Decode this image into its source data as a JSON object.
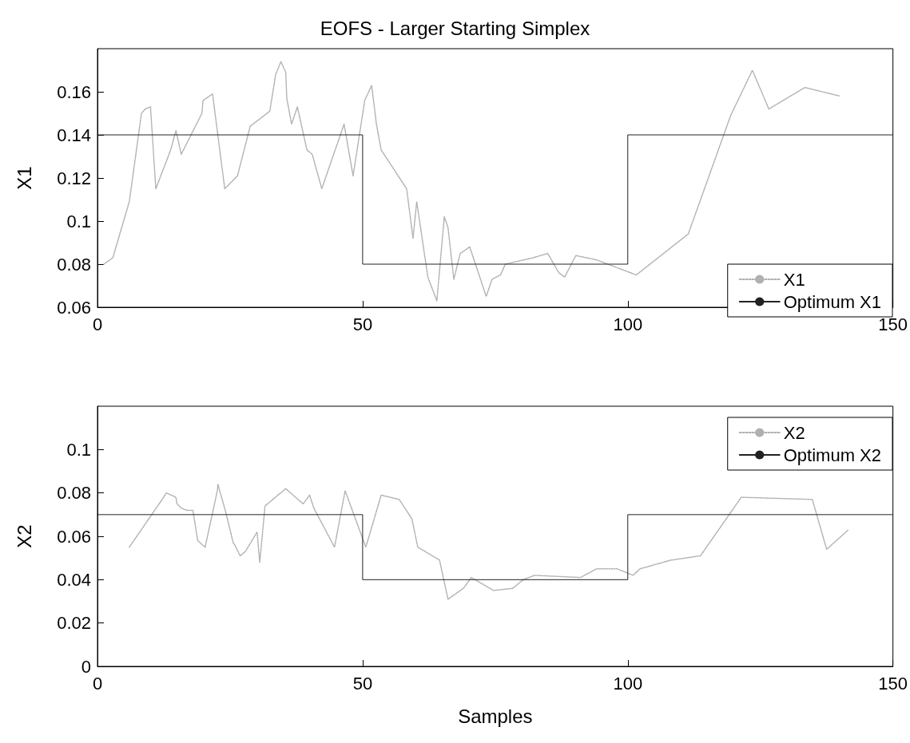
{
  "chart_data": [
    {
      "type": "line",
      "title": "EOFS - Larger Starting Simplex",
      "ylabel": "X1",
      "xlim": [
        0,
        150
      ],
      "xticks": [
        0,
        50,
        100,
        150
      ],
      "ylim": [
        0.06,
        0.18
      ],
      "yticks": [
        0.06,
        0.08,
        0.1,
        0.12,
        0.14,
        0.16
      ],
      "grid": false,
      "legend": "bottom right",
      "marker": "none",
      "series": [
        {
          "name": "X1",
          "color": "#b0b0b0",
          "line_style": "dotted",
          "x": [
            1.2,
            2.9,
            6,
            8.3,
            9,
            10,
            11,
            13.8,
            14.8,
            15.8,
            19.7,
            19.9,
            21.7,
            24,
            26.4,
            28.8,
            32.5,
            33.6,
            34.6,
            35.5,
            35.7,
            36.6,
            37.7,
            39.5,
            40.5,
            42.3,
            46.5,
            48.2,
            50.4,
            51.7,
            52.6,
            53.5,
            58.3,
            59.5,
            60.2,
            62.3,
            64,
            65.4,
            66.1,
            67.2,
            68.4,
            70.2,
            72.9,
            73.3,
            74.4,
            76,
            76.9,
            82.2,
            84.9,
            87,
            88.1,
            90.2,
            94.1,
            101.6,
            111.4,
            119.4,
            123.5,
            126.6,
            133.4,
            140
          ],
          "values": [
            0.08,
            0.083,
            0.109,
            0.15,
            0.152,
            0.153,
            0.115,
            0.133,
            0.142,
            0.131,
            0.15,
            0.156,
            0.159,
            0.115,
            0.121,
            0.144,
            0.151,
            0.168,
            0.174,
            0.169,
            0.157,
            0.145,
            0.153,
            0.133,
            0.131,
            0.115,
            0.145,
            0.121,
            0.156,
            0.163,
            0.145,
            0.133,
            0.115,
            0.092,
            0.109,
            0.074,
            0.063,
            0.102,
            0.097,
            0.073,
            0.085,
            0.088,
            0.068,
            0.065,
            0.073,
            0.075,
            0.08,
            0.083,
            0.085,
            0.076,
            0.074,
            0.084,
            0.082,
            0.075,
            0.094,
            0.149,
            0.17,
            0.152,
            0.162,
            0.158
          ]
        },
        {
          "name": "Optimum X1",
          "color": "#222222",
          "line_style": "solid",
          "x": [
            0,
            50,
            50,
            100,
            100,
            150
          ],
          "values": [
            0.14,
            0.14,
            0.08,
            0.08,
            0.14,
            0.14
          ]
        }
      ]
    },
    {
      "type": "line",
      "xlabel": "Samples",
      "ylabel": "X2",
      "xlim": [
        0,
        150
      ],
      "xticks": [
        0,
        50,
        100,
        150
      ],
      "ylim": [
        0,
        0.12
      ],
      "yticks": [
        0,
        0.02,
        0.04,
        0.06,
        0.08,
        0.1
      ],
      "grid": false,
      "legend": "top right",
      "marker": "none",
      "series": [
        {
          "name": "X2",
          "color": "#b0b0b0",
          "line_style": "dotted",
          "x": [
            6,
            12.2,
            13,
            14.8,
            15,
            15.8,
            16.9,
            18,
            18.9,
            20.3,
            22.6,
            22.7,
            24.1,
            25.6,
            25.9,
            26.9,
            27.9,
            30.1,
            30.6,
            31.6,
            35.5,
            37.8,
            38.8,
            40,
            40.8,
            44.7,
            46.7,
            50.6,
            53.5,
            56.9,
            59.3,
            60.4,
            64.5,
            66.1,
            69,
            70.5,
            74.7,
            78.3,
            80.3,
            82.4,
            91.1,
            94.1,
            98,
            101,
            102.3,
            108.1,
            113.7,
            121.4,
            134.8,
            137.5,
            141.6
          ],
          "values": [
            0.055,
            0.077,
            0.08,
            0.078,
            0.075,
            0.073,
            0.072,
            0.072,
            0.058,
            0.055,
            0.081,
            0.084,
            0.072,
            0.057,
            0.056,
            0.051,
            0.053,
            0.062,
            0.048,
            0.074,
            0.082,
            0.077,
            0.075,
            0.079,
            0.073,
            0.055,
            0.081,
            0.055,
            0.079,
            0.077,
            0.068,
            0.055,
            0.049,
            0.031,
            0.036,
            0.041,
            0.035,
            0.036,
            0.04,
            0.042,
            0.041,
            0.045,
            0.045,
            0.042,
            0.045,
            0.049,
            0.051,
            0.078,
            0.077,
            0.054,
            0.063
          ]
        },
        {
          "name": "Optimum X2",
          "color": "#222222",
          "line_style": "solid",
          "x": [
            0,
            50,
            50,
            100,
            100,
            150
          ],
          "values": [
            0.07,
            0.07,
            0.04,
            0.04,
            0.07,
            0.07
          ]
        }
      ]
    }
  ]
}
